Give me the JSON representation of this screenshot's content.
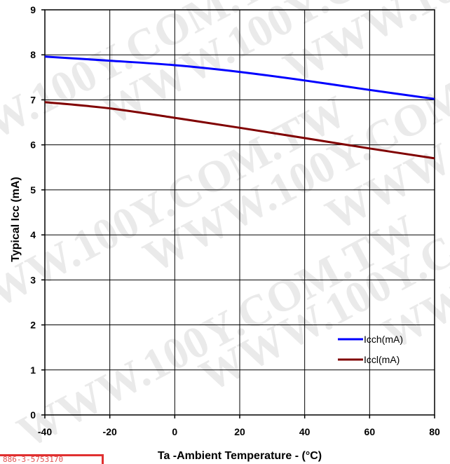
{
  "chart_data": {
    "type": "line",
    "title": "",
    "xlabel": "Ta -Ambient Temperature - (°C)",
    "ylabel": "Typical Icc (mA)",
    "xlim": [
      -40,
      80
    ],
    "ylim": [
      0,
      9
    ],
    "xticks": [
      -40,
      -20,
      0,
      20,
      40,
      60,
      80
    ],
    "yticks": [
      0,
      1,
      2,
      3,
      4,
      5,
      6,
      7,
      8,
      9
    ],
    "grid": true,
    "legend_position": "bottom-right",
    "series": [
      {
        "name": "Icch(mA)",
        "color": "#0000ff",
        "x": [
          -40,
          -20,
          0,
          20,
          40,
          60,
          80
        ],
        "y": [
          7.96,
          7.87,
          7.77,
          7.62,
          7.43,
          7.22,
          7.02
        ]
      },
      {
        "name": "Iccl(mA)",
        "color": "#800000",
        "x": [
          -40,
          -20,
          0,
          20,
          40,
          60,
          80
        ],
        "y": [
          6.95,
          6.81,
          6.6,
          6.38,
          6.15,
          5.92,
          5.7
        ]
      }
    ]
  },
  "watermark": {
    "text": "WWW.100Y.COM.TW"
  },
  "footer": {
    "text": "886-3-5753170"
  }
}
